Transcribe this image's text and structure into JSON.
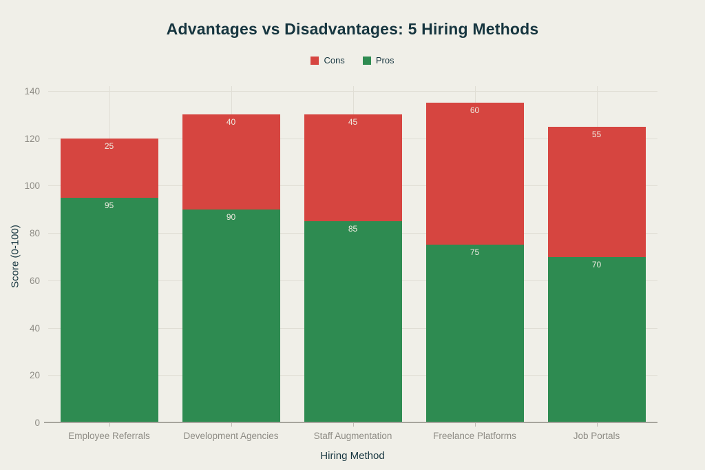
{
  "colors": {
    "background": "#f0efe8",
    "cons_red": "#d64540",
    "pros_green": "#2e8b51",
    "title_text": "#16353f",
    "tick_text": "#8e8c85",
    "gridline": "#dfddd4",
    "axis_line": "#a7a59d",
    "bar_label_text": "#eeebe0"
  },
  "chart_data": {
    "type": "bar",
    "stacked": true,
    "title": "Advantages vs Disadvantages: 5 Hiring Methods",
    "xlabel": "Hiring Method",
    "ylabel": "Score (0-100)",
    "categories": [
      "Employee Referrals",
      "Development Agencies",
      "Staff Augmentation",
      "Freelance Platforms",
      "Job Portals"
    ],
    "series": [
      {
        "name": "Cons",
        "color": "#d64540",
        "values": [
          25,
          40,
          45,
          60,
          55
        ]
      },
      {
        "name": "Pros",
        "color": "#2e8b51",
        "values": [
          95,
          90,
          85,
          75,
          70
        ]
      }
    ],
    "stack_order": [
      "Pros",
      "Cons"
    ],
    "totals": [
      120,
      130,
      130,
      135,
      125
    ],
    "ylim": [
      0,
      140
    ],
    "yticks": [
      0,
      20,
      40,
      60,
      80,
      100,
      120,
      140
    ],
    "grid": true,
    "legend": {
      "position": "top-center",
      "entries": [
        "Cons",
        "Pros"
      ]
    },
    "value_labels": "inside-top"
  }
}
